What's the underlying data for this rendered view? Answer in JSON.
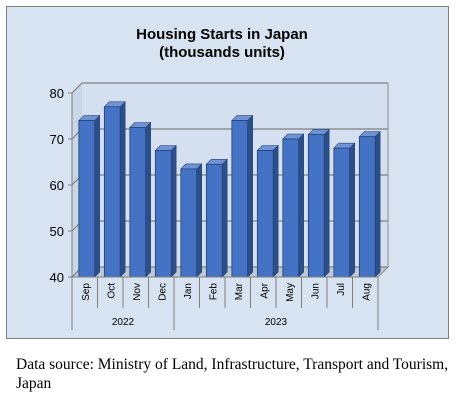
{
  "chart_data": {
    "type": "bar",
    "title_lines": [
      "Housing Starts in Japan",
      "(thousands units)"
    ],
    "categories": [
      "Sep",
      "Oct",
      "Nov",
      "Dec",
      "Jan",
      "Feb",
      "Mar",
      "Apr",
      "May",
      "Jun",
      "Jul",
      "Aug"
    ],
    "groups": [
      {
        "label": "2022",
        "from": 0,
        "to": 3
      },
      {
        "label": "2023",
        "from": 4,
        "to": 11
      }
    ],
    "values": [
      74,
      77,
      72.5,
      67.5,
      63.5,
      64.5,
      74,
      67.5,
      70,
      71,
      68,
      70.5
    ],
    "yticks": [
      40,
      50,
      60,
      70,
      80
    ],
    "ylim": [
      40,
      80
    ],
    "grid": true,
    "bar_color": "#4472c4",
    "plot_background": "#d7e3f1"
  },
  "source_note": "Data source: Ministry of Land, Infrastructure, Transport and Tourism, Japan"
}
